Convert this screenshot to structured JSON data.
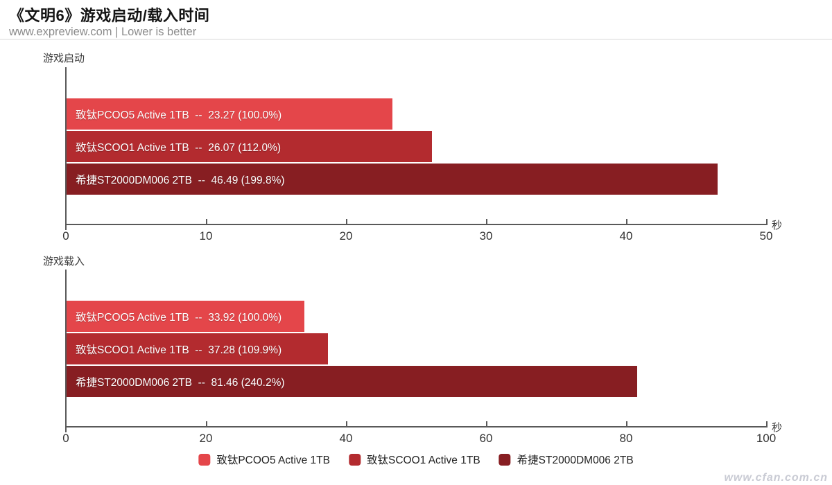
{
  "header": {
    "title": "《文明6》游戏启动/载入时间",
    "subtitle": "www.expreview.com | Lower is better"
  },
  "colors": {
    "bar_light_red": "#E4464A",
    "bar_medium_red": "#B32B2F",
    "bar_dark_red": "#871E22",
    "axis": "#595959",
    "tick_label": "#333333",
    "subtitle_gray": "#8b8b8b"
  },
  "chart_data": [
    {
      "type": "bar",
      "orientation": "horizontal",
      "section_label": "游戏启动",
      "unit": "秒",
      "xlim": [
        0,
        50
      ],
      "xticks": [
        0,
        10,
        20,
        30,
        40,
        50
      ],
      "categories": [
        "致钛PCOO5 Active 1TB",
        "致钛SCOO1 Active 1TB",
        "希捷ST2000DM006 2TB"
      ],
      "values": [
        23.27,
        26.07,
        46.49
      ],
      "percent_labels": [
        "100.0%",
        "112.0%",
        "199.8%"
      ],
      "bar_labels": [
        "致钛PCOO5 Active 1TB  --  23.27 (100.0%)",
        "致钛SCOO1 Active 1TB  --  26.07 (112.0%)",
        "希捷ST2000DM006 2TB  --  46.49 (199.8%)"
      ],
      "bar_colors": [
        "#E4464A",
        "#B32B2F",
        "#871E22"
      ]
    },
    {
      "type": "bar",
      "orientation": "horizontal",
      "section_label": "游戏载入",
      "unit": "秒",
      "xlim": [
        0,
        100
      ],
      "xticks": [
        0,
        20,
        40,
        60,
        80,
        100
      ],
      "categories": [
        "致钛PCOO5 Active 1TB",
        "致钛SCOO1 Active 1TB",
        "希捷ST2000DM006 2TB"
      ],
      "values": [
        33.92,
        37.28,
        81.46
      ],
      "percent_labels": [
        "100.0%",
        "109.9%",
        "240.2%"
      ],
      "bar_labels": [
        "致钛PCOO5 Active 1TB  --  33.92 (100.0%)",
        "致钛SCOO1 Active 1TB  --  37.28 (109.9%)",
        "希捷ST2000DM006 2TB  --  81.46 (240.2%)"
      ],
      "bar_colors": [
        "#E4464A",
        "#B32B2F",
        "#871E22"
      ]
    }
  ],
  "legend": {
    "items": [
      {
        "label": "致钛PCOO5 Active 1TB",
        "color": "#E4464A"
      },
      {
        "label": "致钛SCOO1 Active 1TB",
        "color": "#B32B2F"
      },
      {
        "label": "希捷ST2000DM006 2TB",
        "color": "#871E22"
      }
    ]
  },
  "watermark": "www.cfan.com.cn"
}
